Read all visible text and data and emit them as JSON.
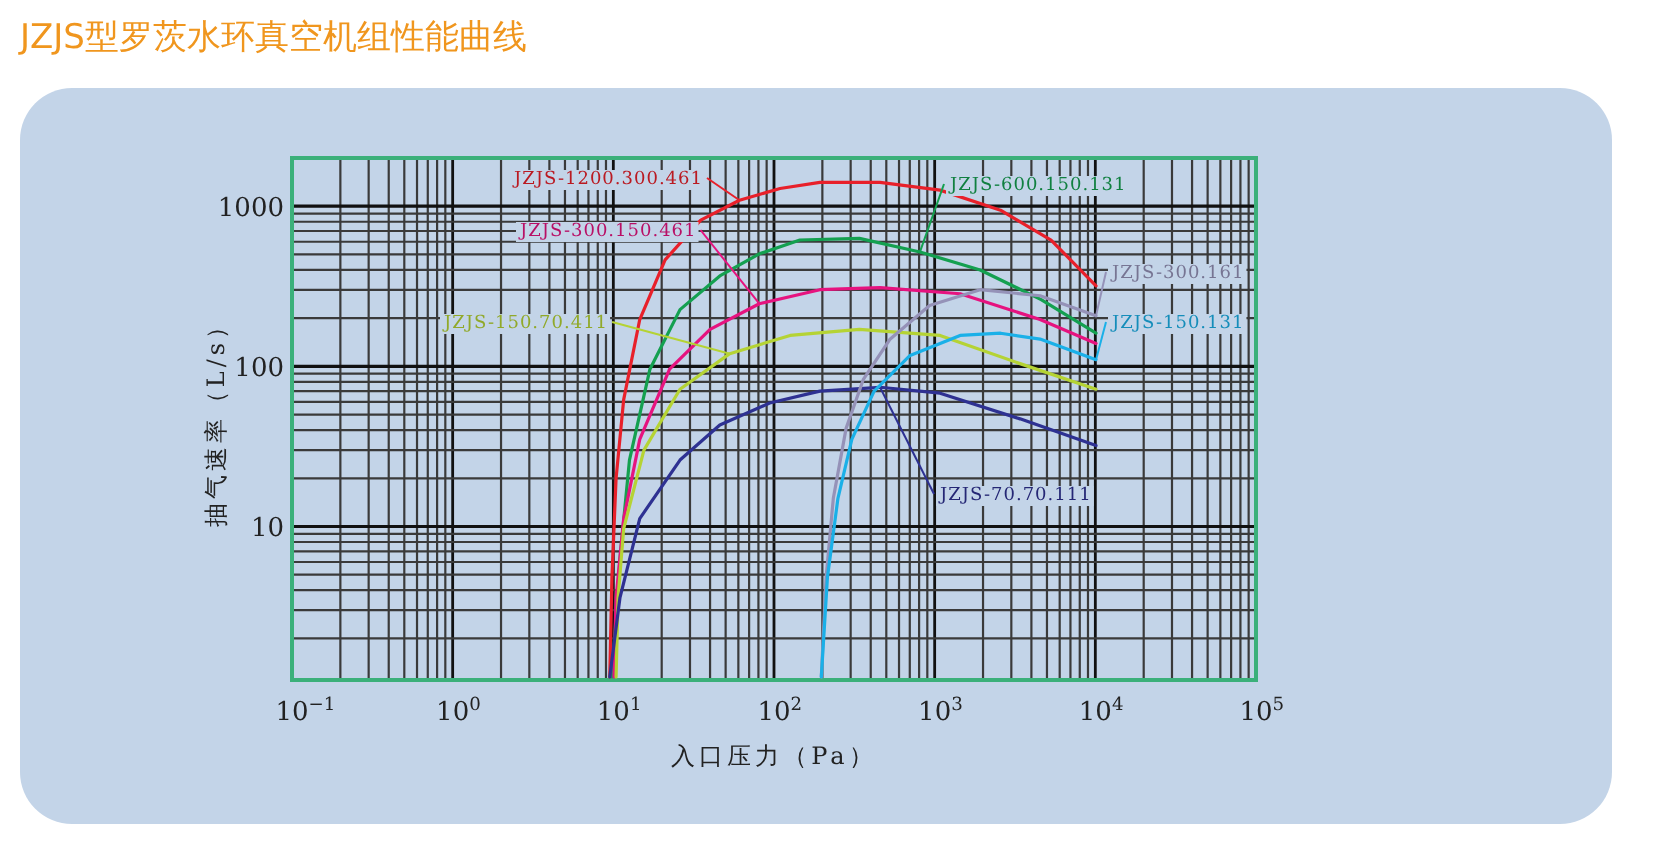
{
  "chart_data": {
    "type": "line",
    "title": "JZJS型罗茨水环真空机组性能曲线",
    "xlabel": "入口压力（Pa）",
    "ylabel": "抽气速率（L/s）",
    "log": "xy",
    "grid": true,
    "xlim": [
      0.1,
      100000
    ],
    "ylim": [
      1.1,
      2000
    ],
    "xticks": [
      {
        "value": 0.1,
        "label": "10$^{−1}$"
      },
      {
        "value": 1,
        "label": "10$^{0}$"
      },
      {
        "value": 10,
        "label": "10$^{1}$"
      },
      {
        "value": 100,
        "label": "10$^{2}$"
      },
      {
        "value": 1000,
        "label": "10$^{3}$"
      },
      {
        "value": 10000,
        "label": "10$^{4}$"
      },
      {
        "value": 100000,
        "label": "10$^{5}$"
      }
    ],
    "yticks": [
      10,
      100,
      1000
    ],
    "series": [
      {
        "name": "JZJS-1200.300.461",
        "color": "#e8202a",
        "x": [
          9.5,
          9.8,
          10.4,
          11.6,
          14.6,
          21,
          35,
          61,
          109,
          193,
          457,
          1080,
          2570,
          5300,
          10100
        ],
        "values": [
          1.15,
          4.8,
          20,
          62,
          196,
          462,
          818,
          1090,
          1290,
          1410,
          1410,
          1260,
          944,
          615,
          318
        ]
      },
      {
        "name": "JZJS-600.150.131",
        "color": "#14a050",
        "x": [
          9.8,
          11,
          12.6,
          16.9,
          26,
          46,
          81,
          145,
          340,
          810,
          1920,
          4600,
          10100
        ],
        "values": [
          1.15,
          6.3,
          26,
          96,
          226,
          367,
          504,
          615,
          630,
          518,
          400,
          261,
          161
        ]
      },
      {
        "name": "JZJS-300.150.461",
        "color": "#e6137f",
        "x": [
          10.1,
          10.4,
          11.6,
          14.6,
          22.4,
          40,
          81,
          193,
          457,
          1440,
          4530,
          10100
        ],
        "values": [
          1.15,
          3.6,
          11.2,
          35,
          96,
          170,
          246,
          301,
          310,
          284,
          196,
          139
        ]
      },
      {
        "name": "JZJS-150.70.411",
        "color": "#b5d334",
        "x": [
          10.4,
          10.7,
          11.6,
          15.5,
          26,
          53,
          126,
          340,
          1080,
          3400,
          10100
        ],
        "values": [
          1.15,
          3.6,
          9.7,
          30,
          72,
          120,
          156,
          170,
          156,
          104,
          72
        ]
      },
      {
        "name": "JZJS-70.70.111",
        "color": "#2e3192",
        "x": [
          9.5,
          11,
          14.6,
          26,
          46,
          94,
          193,
          457,
          1080,
          3400,
          10100
        ],
        "values": [
          1.15,
          3.6,
          11.2,
          26,
          43,
          59,
          70,
          74,
          68,
          47,
          32
        ]
      },
      {
        "name": "JZJS-300.161",
        "color": "#9592b8",
        "x": [
          197,
          211,
          234,
          281,
          360,
          525,
          930,
          1920,
          4530,
          10100
        ],
        "values": [
          1.15,
          4.8,
          15,
          41,
          83,
          147,
          240,
          301,
          276,
          207
        ]
      },
      {
        "name": "JZJS-150.131",
        "color": "#1ab0e8",
        "x": [
          197,
          215,
          250,
          305,
          420,
          703,
          1440,
          2570,
          4530,
          10100
        ],
        "values": [
          1.15,
          4.8,
          15,
          35,
          70,
          117,
          156,
          161,
          148,
          110
        ]
      }
    ]
  }
}
